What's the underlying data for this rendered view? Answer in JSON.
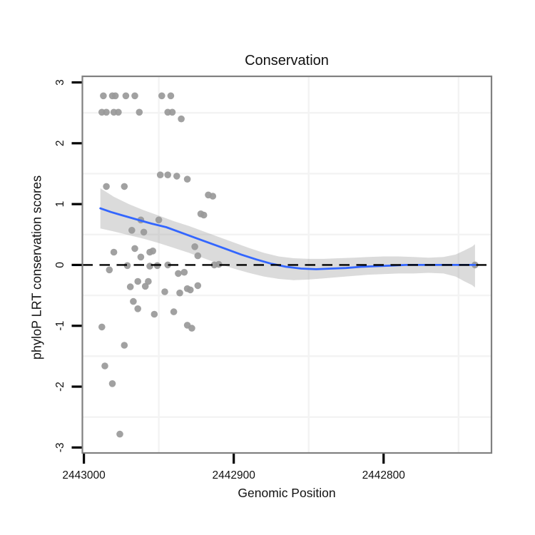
{
  "chart": {
    "title": "Conservation",
    "x_label": "Genomic Position",
    "y_label": "phyloP LRT conservation scores"
  },
  "chart_data": {
    "type": "scatter",
    "title": "Conservation",
    "xlabel": "Genomic Position",
    "ylabel": "phyloP LRT conservation scores",
    "x_axis": {
      "ticks": [
        2443000,
        2442900,
        2442800
      ],
      "minor_gridlines": [
        2442950,
        2442850,
        2442750
      ],
      "domain": [
        2443001,
        2442728
      ],
      "reversed": true
    },
    "y_axis": {
      "ticks": [
        3,
        2,
        1,
        0,
        -1,
        -2,
        -3
      ],
      "minor_gridlines": [
        2.5,
        1.5,
        0.5,
        -0.5,
        -1.5,
        -2.5
      ],
      "domain": [
        -3.09,
        3.1
      ]
    },
    "hline": {
      "y": 0,
      "style": "dashed",
      "color": "#000000"
    },
    "points": [
      [
        2442987,
        2.78
      ],
      [
        2442981,
        2.78
      ],
      [
        2442979,
        2.78
      ],
      [
        2442972,
        2.78
      ],
      [
        2442966,
        2.78
      ],
      [
        2442948,
        2.78
      ],
      [
        2442942,
        2.78
      ],
      [
        2442988,
        2.51
      ],
      [
        2442985,
        2.51
      ],
      [
        2442980,
        2.51
      ],
      [
        2442977,
        2.51
      ],
      [
        2442963,
        2.51
      ],
      [
        2442944,
        2.51
      ],
      [
        2442941,
        2.51
      ],
      [
        2442935,
        2.4
      ],
      [
        2442949,
        1.48
      ],
      [
        2442944,
        1.48
      ],
      [
        2442938,
        1.46
      ],
      [
        2442931,
        1.41
      ],
      [
        2442985,
        1.29
      ],
      [
        2442973,
        1.29
      ],
      [
        2442917,
        1.15
      ],
      [
        2442914,
        1.13
      ],
      [
        2442922,
        0.84
      ],
      [
        2442920,
        0.82
      ],
      [
        2442962,
        0.74
      ],
      [
        2442950,
        0.74
      ],
      [
        2442968,
        0.57
      ],
      [
        2442960,
        0.54
      ],
      [
        2442926,
        0.3
      ],
      [
        2442924,
        0.15
      ],
      [
        2442980,
        0.21
      ],
      [
        2442966,
        0.27
      ],
      [
        2442962,
        0.13
      ],
      [
        2442956,
        0.21
      ],
      [
        2442954,
        0.23
      ],
      [
        2442983,
        -0.08
      ],
      [
        2442971,
        -0.01
      ],
      [
        2442956,
        -0.02
      ],
      [
        2442951,
        -0.01
      ],
      [
        2442944,
        0.0
      ],
      [
        2442913,
        0.0
      ],
      [
        2442910,
        0.01
      ],
      [
        2442739,
        0.0
      ],
      [
        2442937,
        -0.14
      ],
      [
        2442933,
        -0.12
      ],
      [
        2442969,
        -0.36
      ],
      [
        2442964,
        -0.27
      ],
      [
        2442959,
        -0.35
      ],
      [
        2442957,
        -0.27
      ],
      [
        2442946,
        -0.44
      ],
      [
        2442936,
        -0.46
      ],
      [
        2442931,
        -0.39
      ],
      [
        2442929,
        -0.41
      ],
      [
        2442924,
        -0.34
      ],
      [
        2442967,
        -0.6
      ],
      [
        2442964,
        -0.72
      ],
      [
        2442953,
        -0.81
      ],
      [
        2442940,
        -0.77
      ],
      [
        2442988,
        -1.02
      ],
      [
        2442931,
        -0.99
      ],
      [
        2442928,
        -1.04
      ],
      [
        2442973,
        -1.32
      ],
      [
        2442986,
        -1.66
      ],
      [
        2442981,
        -1.95
      ],
      [
        2442976,
        -2.78
      ]
    ],
    "smooth": {
      "color": "#3366FF",
      "line": [
        [
          2442989,
          0.93
        ],
        [
          2442982,
          0.87
        ],
        [
          2442975,
          0.82
        ],
        [
          2442965,
          0.75
        ],
        [
          2442955,
          0.68
        ],
        [
          2442945,
          0.62
        ],
        [
          2442935,
          0.53
        ],
        [
          2442925,
          0.44
        ],
        [
          2442915,
          0.35
        ],
        [
          2442905,
          0.26
        ],
        [
          2442895,
          0.17
        ],
        [
          2442885,
          0.09
        ],
        [
          2442875,
          0.02
        ],
        [
          2442865,
          -0.03
        ],
        [
          2442855,
          -0.06
        ],
        [
          2442845,
          -0.07
        ],
        [
          2442835,
          -0.06
        ],
        [
          2442825,
          -0.05
        ],
        [
          2442815,
          -0.03
        ],
        [
          2442805,
          -0.02
        ],
        [
          2442795,
          -0.01
        ],
        [
          2442785,
          0.0
        ],
        [
          2442770,
          0.0
        ],
        [
          2442755,
          0.0
        ],
        [
          2442739,
          0.0
        ]
      ],
      "band": [
        [
          2442989,
          1.26,
          0.6
        ],
        [
          2442980,
          1.12,
          0.55
        ],
        [
          2442970,
          1.0,
          0.49
        ],
        [
          2442960,
          0.9,
          0.43
        ],
        [
          2442950,
          0.81,
          0.36
        ],
        [
          2442940,
          0.72,
          0.28
        ],
        [
          2442930,
          0.64,
          0.2
        ],
        [
          2442920,
          0.55,
          0.11
        ],
        [
          2442910,
          0.46,
          0.02
        ],
        [
          2442900,
          0.37,
          -0.06
        ],
        [
          2442890,
          0.28,
          -0.13
        ],
        [
          2442880,
          0.2,
          -0.19
        ],
        [
          2442870,
          0.14,
          -0.23
        ],
        [
          2442860,
          0.11,
          -0.25
        ],
        [
          2442850,
          0.1,
          -0.24
        ],
        [
          2442840,
          0.1,
          -0.22
        ],
        [
          2442830,
          0.11,
          -0.2
        ],
        [
          2442820,
          0.12,
          -0.18
        ],
        [
          2442810,
          0.13,
          -0.16
        ],
        [
          2442800,
          0.14,
          -0.15
        ],
        [
          2442790,
          0.14,
          -0.14
        ],
        [
          2442780,
          0.13,
          -0.14
        ],
        [
          2442770,
          0.12,
          -0.13
        ],
        [
          2442760,
          0.13,
          -0.14
        ],
        [
          2442752,
          0.17,
          -0.19
        ],
        [
          2442746,
          0.24,
          -0.27
        ],
        [
          2442741,
          0.3,
          -0.33
        ],
        [
          2442739,
          0.34,
          -0.37
        ]
      ]
    },
    "colors": {
      "point": "#999999",
      "band": "#999999",
      "smooth_line": "#3366FF",
      "hline": "#000000",
      "panel_border": "#808080",
      "gridline": "#f3f3f3",
      "tick": "#000000",
      "text": "#111111"
    },
    "legend": "none",
    "grid": "minor-only"
  }
}
